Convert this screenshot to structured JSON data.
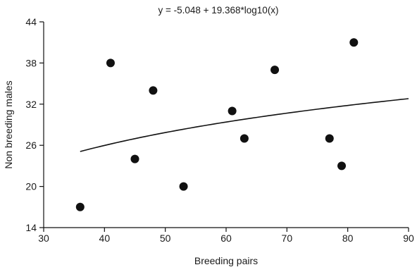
{
  "chart_data": {
    "type": "scatter",
    "title": "y = -5.048 + 19.368*log10(x)",
    "xlabel": "Breeding pairs",
    "ylabel": "Non breeding males",
    "xlim": [
      30,
      90
    ],
    "ylim": [
      14,
      44
    ],
    "xticks": [
      "30",
      "40",
      "50",
      "60",
      "70",
      "80",
      "90"
    ],
    "yticks": [
      "14",
      "20",
      "26",
      "32",
      "38",
      "44"
    ],
    "grid": false,
    "points": [
      {
        "x": 36,
        "y": 17
      },
      {
        "x": 41,
        "y": 38
      },
      {
        "x": 45,
        "y": 24
      },
      {
        "x": 48,
        "y": 34
      },
      {
        "x": 53,
        "y": 20
      },
      {
        "x": 61,
        "y": 31
      },
      {
        "x": 63,
        "y": 27
      },
      {
        "x": 68,
        "y": 37
      },
      {
        "x": 77,
        "y": 27
      },
      {
        "x": 79,
        "y": 23
      },
      {
        "x": 81,
        "y": 41
      }
    ],
    "fit": {
      "type": "logarithmic",
      "intercept": -5.048,
      "slope": 19.368,
      "x_range": [
        36,
        90
      ]
    },
    "colors": {
      "points": "#111111",
      "line": "#111111",
      "axis": "#111111"
    }
  }
}
